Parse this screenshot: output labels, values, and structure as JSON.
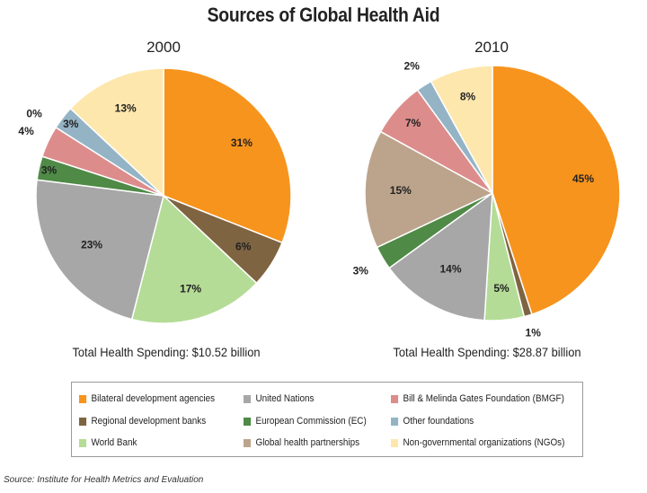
{
  "title": "Sources of Global Health Aid",
  "source_note": "Source: Institute for Health Metrics and Evaluation",
  "legend_categories": [
    {
      "name": "Bilateral development agencies",
      "color": "#f7941d"
    },
    {
      "name": "Regional development banks",
      "color": "#7f6442"
    },
    {
      "name": "World Bank",
      "color": "#b4dc96"
    },
    {
      "name": "United Nations",
      "color": "#a7a7a7"
    },
    {
      "name": "European Commission (EC)",
      "color": "#4f8a47"
    },
    {
      "name": "Global health partnerships",
      "color": "#bca48c"
    },
    {
      "name": "Bill & Melinda Gates Foundation (BMGF)",
      "color": "#dd8c8c"
    },
    {
      "name": "Other foundations",
      "color": "#94b4c6"
    },
    {
      "name": "Non-governmental organizations (NGOs)",
      "color": "#fde7ad"
    }
  ],
  "chart_data": [
    {
      "type": "pie",
      "title": "2000",
      "footer": "Total Health Spending: $10.52 billion",
      "slices": [
        {
          "category": "Bilateral development agencies",
          "value": 31,
          "label": "31%"
        },
        {
          "category": "Regional development banks",
          "value": 6,
          "label": "6%"
        },
        {
          "category": "World Bank",
          "value": 17,
          "label": "17%"
        },
        {
          "category": "United Nations",
          "value": 23,
          "label": "23%"
        },
        {
          "category": "European Commission (EC)",
          "value": 3,
          "label": "3%"
        },
        {
          "category": "Bill & Melinda Gates Foundation (BMGF)",
          "value": 4,
          "label": "4%"
        },
        {
          "category": "Global health partnerships",
          "value": 0,
          "label": "0%"
        },
        {
          "category": "Other foundations",
          "value": 3,
          "label": "3%"
        },
        {
          "category": "Non-governmental organizations (NGOs)",
          "value": 13,
          "label": "13%"
        }
      ]
    },
    {
      "type": "pie",
      "title": "2010",
      "footer": "Total Health Spending: $28.87 billion",
      "slices": [
        {
          "category": "Bilateral development agencies",
          "value": 45,
          "label": "45%"
        },
        {
          "category": "Regional development banks",
          "value": 1,
          "label": "1%"
        },
        {
          "category": "World Bank",
          "value": 5,
          "label": "5%"
        },
        {
          "category": "United Nations",
          "value": 14,
          "label": "14%"
        },
        {
          "category": "European Commission (EC)",
          "value": 3,
          "label": "3%"
        },
        {
          "category": "Global health partnerships",
          "value": 15,
          "label": "15%"
        },
        {
          "category": "Bill & Melinda Gates Foundation (BMGF)",
          "value": 7,
          "label": "7%"
        },
        {
          "category": "Other foundations",
          "value": 2,
          "label": "2%"
        },
        {
          "category": "Non-governmental organizations (NGOs)",
          "value": 8,
          "label": "8%"
        }
      ]
    }
  ]
}
